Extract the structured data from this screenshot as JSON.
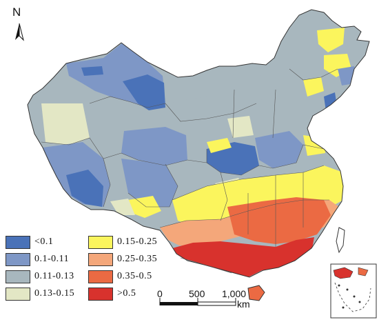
{
  "map": {
    "north_label": "N",
    "legend": [
      {
        "label": "<0.1",
        "color": "#4a72b8"
      },
      {
        "label": "0.1-0.11",
        "color": "#7e97c6"
      },
      {
        "label": "0.11-0.13",
        "color": "#a8b7be"
      },
      {
        "label": "0.13-0.15",
        "color": "#e3e7c5"
      },
      {
        "label": "0.15-0.25",
        "color": "#fbf55d"
      },
      {
        "label": "0.25-0.35",
        "color": "#f4a77a"
      },
      {
        "label": "0.35-0.5",
        "color": "#eb6a43"
      },
      {
        "label": ">0.5",
        "color": "#d8322d"
      }
    ],
    "scale": {
      "tick_0": "0",
      "tick_500": "500",
      "tick_1000": "1,000",
      "unit": "km"
    },
    "colors": {
      "boundary": "#333333",
      "background": "#ffffff"
    }
  }
}
